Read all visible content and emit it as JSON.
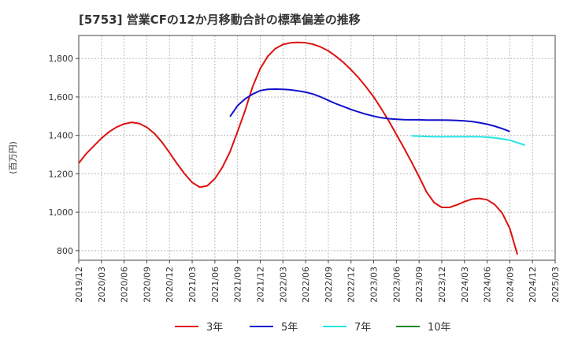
{
  "chart_data": {
    "type": "line",
    "title": "[5753]  営業CFの12か月移動合計の標準偏差の推移",
    "ylabel": "(百万円)",
    "xlabel": "",
    "x_ticks": [
      "2019/12",
      "2020/03",
      "2020/06",
      "2020/09",
      "2020/12",
      "2021/03",
      "2021/06",
      "2021/09",
      "2021/12",
      "2022/03",
      "2022/06",
      "2022/09",
      "2022/12",
      "2023/03",
      "2023/06",
      "2023/09",
      "2023/12",
      "2024/03",
      "2024/06",
      "2024/09",
      "2024/12",
      "2025/03"
    ],
    "y_ticks": [
      800,
      1000,
      1200,
      1400,
      1600,
      1800
    ],
    "y_tick_labels": [
      "800",
      "1,000",
      "1,200",
      "1,400",
      "1,600",
      "1,800"
    ],
    "ylim": [
      750,
      1920
    ],
    "grid": true,
    "legend_position": "bottom",
    "series": [
      {
        "name": "3年",
        "color": "#dd1111",
        "x_start": "2019/12",
        "values": [
          1255,
          1305,
          1345,
          1385,
          1418,
          1443,
          1460,
          1468,
          1462,
          1442,
          1410,
          1365,
          1310,
          1253,
          1200,
          1155,
          1130,
          1138,
          1175,
          1235,
          1315,
          1420,
          1530,
          1655,
          1748,
          1812,
          1852,
          1873,
          1882,
          1884,
          1882,
          1874,
          1860,
          1840,
          1812,
          1780,
          1742,
          1700,
          1652,
          1600,
          1540,
          1475,
          1405,
          1335,
          1262,
          1185,
          1105,
          1050,
          1025,
          1025,
          1038,
          1055,
          1068,
          1072,
          1065,
          1040,
          995,
          915,
          780
        ]
      },
      {
        "name": "5年",
        "color": "#1111cc",
        "x_start": "2021/08",
        "values": [
          1498,
          1555,
          1590,
          1615,
          1633,
          1640,
          1641,
          1640,
          1637,
          1632,
          1625,
          1615,
          1600,
          1582,
          1565,
          1550,
          1535,
          1522,
          1510,
          1500,
          1492,
          1487,
          1484,
          1482,
          1481,
          1481,
          1480,
          1480,
          1480,
          1479,
          1478,
          1476,
          1472,
          1466,
          1458,
          1448,
          1435,
          1420
        ]
      },
      {
        "name": "7年",
        "color": "#22e5e5",
        "x_start": "2023/08",
        "values": [
          1398,
          1396,
          1394,
          1393,
          1393,
          1393,
          1393,
          1393,
          1393,
          1393,
          1391,
          1387,
          1382,
          1375,
          1362,
          1349
        ]
      },
      {
        "name": "10年",
        "color": "#228822",
        "x_start": "2024/09",
        "values": []
      }
    ]
  }
}
